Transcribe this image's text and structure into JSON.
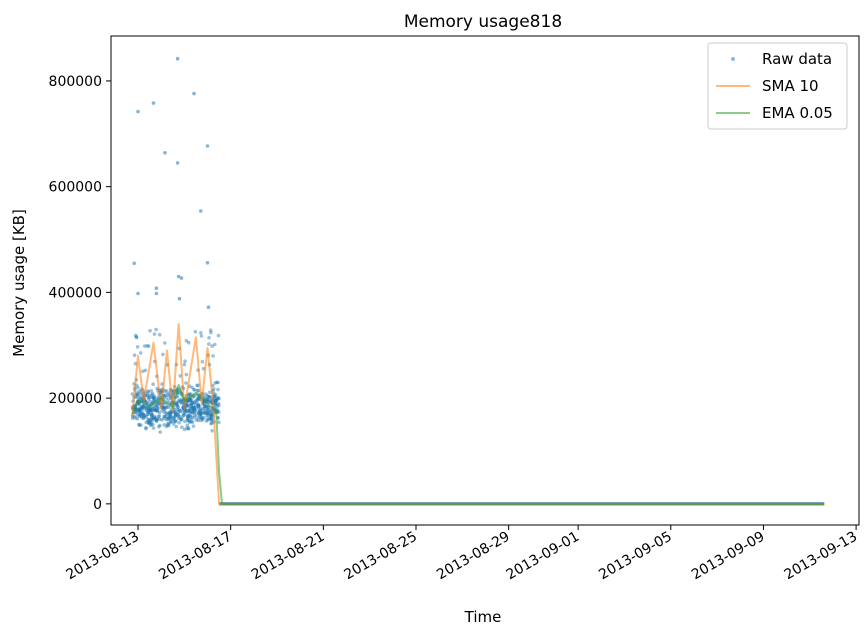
{
  "chart_data": {
    "type": "line",
    "title": "Memory usage818",
    "xlabel": "Time",
    "ylabel": "Memory usage [KB]",
    "x_tick_labels": [
      "2013-08-13",
      "2013-08-17",
      "2013-08-21",
      "2013-08-25",
      "2013-08-29",
      "2013-09-01",
      "2013-09-05",
      "2013-09-09",
      "2013-09-13"
    ],
    "y_tick_labels": [
      "0",
      "200000",
      "400000",
      "600000",
      "800000"
    ],
    "x_range": [
      "2013-08-11T20:00",
      "2013-09-13T03:00"
    ],
    "ylim": [
      -40000,
      885000
    ],
    "grid": false,
    "legend_position": "top-right",
    "series": [
      {
        "name": "Raw data",
        "style": "points",
        "color": "#1f77b4",
        "note_active_period": [
          "2013-08-12T18:00",
          "2013-08-16T12:00"
        ],
        "typical_range_active": [
          130000,
          240000
        ],
        "outliers": [
          {
            "x": "2013-08-12T20:00",
            "y": 455000
          },
          {
            "x": "2013-08-13T00:00",
            "y": 742000
          },
          {
            "x": "2013-08-13T00:00",
            "y": 398000
          },
          {
            "x": "2013-08-13T16:00",
            "y": 758000
          },
          {
            "x": "2013-08-13T19:00",
            "y": 408000
          },
          {
            "x": "2013-08-13T19:00",
            "y": 398000
          },
          {
            "x": "2013-08-14T04:00",
            "y": 664000
          },
          {
            "x": "2013-08-14T17:00",
            "y": 842000
          },
          {
            "x": "2013-08-14T17:00",
            "y": 645000
          },
          {
            "x": "2013-08-14T18:00",
            "y": 430000
          },
          {
            "x": "2013-08-14T19:00",
            "y": 388000
          },
          {
            "x": "2013-08-14T21:00",
            "y": 427000
          },
          {
            "x": "2013-08-15T10:00",
            "y": 776000
          },
          {
            "x": "2013-08-15T17:00",
            "y": 554000
          },
          {
            "x": "2013-08-16T00:00",
            "y": 677000
          },
          {
            "x": "2013-08-16T00:00",
            "y": 456000
          },
          {
            "x": "2013-08-16T01:00",
            "y": 372000
          }
        ],
        "idle_value": 0,
        "idle_period": [
          "2013-08-16T12:00",
          "2013-09-11T15:00"
        ]
      },
      {
        "name": "SMA 10",
        "style": "line",
        "color": "#ff7f0e",
        "points": [
          {
            "x": "2013-08-12T18:00",
            "y": 165000
          },
          {
            "x": "2013-08-13T00:00",
            "y": 280000
          },
          {
            "x": "2013-08-13T06:00",
            "y": 195000
          },
          {
            "x": "2013-08-13T16:00",
            "y": 305000
          },
          {
            "x": "2013-08-14T00:00",
            "y": 180000
          },
          {
            "x": "2013-08-14T06:00",
            "y": 290000
          },
          {
            "x": "2013-08-14T12:00",
            "y": 175000
          },
          {
            "x": "2013-08-14T18:00",
            "y": 340000
          },
          {
            "x": "2013-08-15T00:00",
            "y": 180000
          },
          {
            "x": "2013-08-15T12:00",
            "y": 315000
          },
          {
            "x": "2013-08-15T18:00",
            "y": 190000
          },
          {
            "x": "2013-08-16T00:00",
            "y": 295000
          },
          {
            "x": "2013-08-16T06:00",
            "y": 185000
          },
          {
            "x": "2013-08-16T12:00",
            "y": 0
          },
          {
            "x": "2013-09-11T15:00",
            "y": 0
          }
        ]
      },
      {
        "name": "EMA 0.05",
        "style": "line",
        "color": "#2ca02c",
        "points": [
          {
            "x": "2013-08-12T18:00",
            "y": 170000
          },
          {
            "x": "2013-08-13T00:00",
            "y": 195000
          },
          {
            "x": "2013-08-13T12:00",
            "y": 185000
          },
          {
            "x": "2013-08-14T00:00",
            "y": 200000
          },
          {
            "x": "2013-08-14T12:00",
            "y": 182000
          },
          {
            "x": "2013-08-14T18:00",
            "y": 225000
          },
          {
            "x": "2013-08-15T00:00",
            "y": 195000
          },
          {
            "x": "2013-08-15T12:00",
            "y": 210000
          },
          {
            "x": "2013-08-16T00:00",
            "y": 190000
          },
          {
            "x": "2013-08-16T09:00",
            "y": 175000
          },
          {
            "x": "2013-08-16T12:00",
            "y": 60000
          },
          {
            "x": "2013-08-16T15:00",
            "y": 0
          },
          {
            "x": "2013-09-11T15:00",
            "y": 0
          }
        ]
      }
    ]
  }
}
